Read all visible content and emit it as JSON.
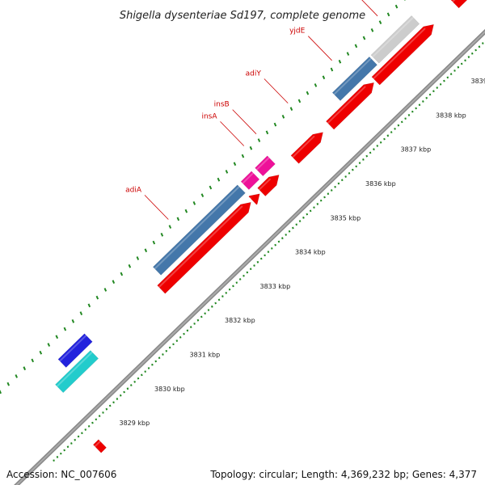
{
  "title": "Shigella dysenteriae Sd197, complete genome",
  "footer": {
    "accession": "Accession: NC_007606",
    "summary": "Topology: circular; Length: 4,369,232 bp; Genes: 4,377"
  },
  "scale_labels": [
    {
      "kbp": 3829,
      "text": "3829 kbp"
    },
    {
      "kbp": 3830,
      "text": "3830 kbp"
    },
    {
      "kbp": 3831,
      "text": "3831 kbp"
    },
    {
      "kbp": 3832,
      "text": "3832 kbp"
    },
    {
      "kbp": 3833,
      "text": "3833 kbp"
    },
    {
      "kbp": 3834,
      "text": "3834 kbp"
    },
    {
      "kbp": 3835,
      "text": "3835 kbp"
    },
    {
      "kbp": 3836,
      "text": "3836 kbp"
    },
    {
      "kbp": 3837,
      "text": "3837 kbp"
    },
    {
      "kbp": 3838,
      "text": "3838 kbp"
    },
    {
      "kbp": 3839,
      "text": "3839 kbp"
    }
  ],
  "gene_labels": [
    {
      "name": "adiA",
      "kbp": 3832.6
    },
    {
      "name": "insA",
      "kbp": 3834.75
    },
    {
      "name": "insB",
      "kbp": 3835.1
    },
    {
      "name": "adiY",
      "kbp": 3836.0
    },
    {
      "name": "yjdE",
      "kbp": 3837.25
    },
    {
      "name": "yjdB",
      "kbp": 3838.55
    }
  ],
  "features": [
    {
      "track": "outer2",
      "start": 3829.0,
      "end": 3829.75,
      "color": "#2222dd",
      "arrow": "none"
    },
    {
      "track": "outer1",
      "start": 3828.6,
      "end": 3829.6,
      "color": "#22cccc",
      "arrow": "none"
    },
    {
      "track": "outer2",
      "start": 3831.7,
      "end": 3834.1,
      "color": "#4477aa",
      "arrow": "none"
    },
    {
      "track": "outer2",
      "start": 3834.2,
      "end": 3834.5,
      "color": "#ee1199",
      "arrow": "none"
    },
    {
      "track": "outer2",
      "start": 3834.6,
      "end": 3834.95,
      "color": "#ee1199",
      "arrow": "none"
    },
    {
      "track": "outer2",
      "start": 3836.8,
      "end": 3837.85,
      "color": "#4477aa",
      "arrow": "none"
    },
    {
      "track": "outer2",
      "start": 3837.9,
      "end": 3839.05,
      "color": "#cccccc",
      "arrow": "none"
    },
    {
      "track": "outer2",
      "start": 3840.25,
      "end": 3840.95,
      "color": "#33bb33",
      "arrow": "none"
    },
    {
      "track": "outer1",
      "start": 3831.5,
      "end": 3834.05,
      "color": "#ee0000",
      "arrow": "right"
    },
    {
      "track": "outer1",
      "start": 3834.1,
      "end": 3834.3,
      "color": "#ee0000",
      "arrow": "right"
    },
    {
      "track": "outer1",
      "start": 3834.35,
      "end": 3834.85,
      "color": "#ee0000",
      "arrow": "right"
    },
    {
      "track": "outer1",
      "start": 3835.3,
      "end": 3836.1,
      "color": "#ee0000",
      "arrow": "right"
    },
    {
      "track": "outer1",
      "start": 3836.3,
      "end": 3837.55,
      "color": "#ee0000",
      "arrow": "right"
    },
    {
      "track": "outer1",
      "start": 3837.6,
      "end": 3839.25,
      "color": "#ee0000",
      "arrow": "right"
    },
    {
      "track": "outer1",
      "start": 3839.85,
      "end": 3840.85,
      "color": "#ee0000",
      "arrow": "right"
    },
    {
      "track": "outer2",
      "start": 3841.5,
      "end": 3841.9,
      "color": "#2222dd",
      "arrow": "none"
    },
    {
      "track": "inner1",
      "start": 3828.3,
      "end": 3828.45,
      "color": "#ee0000",
      "arrow": "none"
    }
  ]
}
